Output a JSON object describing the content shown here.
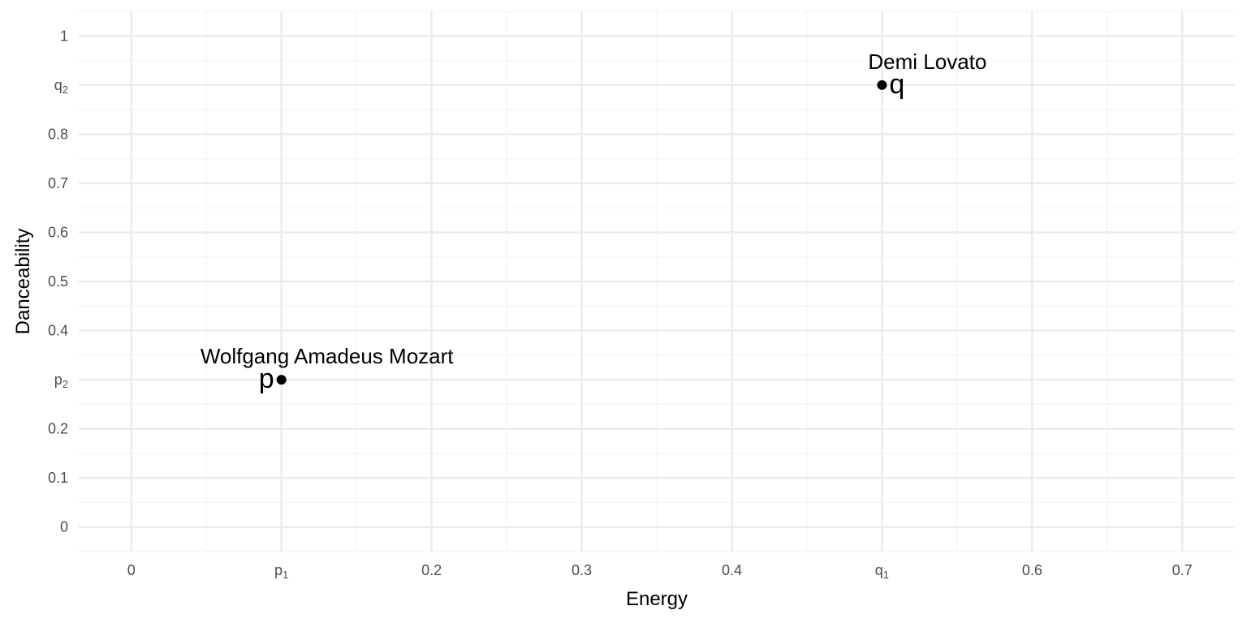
{
  "chart_data": {
    "type": "scatter",
    "title": "",
    "xlabel": "Energy",
    "ylabel": "Danceability",
    "xlim": [
      -0.035,
      0.735
    ],
    "ylim": [
      -0.05,
      1.05
    ],
    "x_ticks": [
      {
        "value": 0,
        "label": "0"
      },
      {
        "value": 0.1,
        "label": "p",
        "sub": "1"
      },
      {
        "value": 0.2,
        "label": "0.2"
      },
      {
        "value": 0.3,
        "label": "0.3"
      },
      {
        "value": 0.4,
        "label": "0.4"
      },
      {
        "value": 0.5,
        "label": "q",
        "sub": "1"
      },
      {
        "value": 0.6,
        "label": "0.6"
      },
      {
        "value": 0.7,
        "label": "0.7"
      }
    ],
    "y_ticks": [
      {
        "value": 0,
        "label": "0"
      },
      {
        "value": 0.1,
        "label": "0.1"
      },
      {
        "value": 0.2,
        "label": "0.2"
      },
      {
        "value": 0.3,
        "label": "p",
        "sub": "2"
      },
      {
        "value": 0.4,
        "label": "0.4"
      },
      {
        "value": 0.5,
        "label": "0.5"
      },
      {
        "value": 0.6,
        "label": "0.6"
      },
      {
        "value": 0.7,
        "label": "0.7"
      },
      {
        "value": 0.8,
        "label": "0.8"
      },
      {
        "value": 0.9,
        "label": "q",
        "sub": "2"
      },
      {
        "value": 1,
        "label": "1"
      }
    ],
    "grid": true,
    "points": [
      {
        "x": 0.1,
        "y": 0.3,
        "label": "Wolfgang Amadeus Mozart",
        "letter": "p",
        "letter_side": "left"
      },
      {
        "x": 0.5,
        "y": 0.9,
        "label": "Demi Lovato",
        "letter": "q",
        "letter_side": "right"
      }
    ],
    "colors": {
      "point": "#000000",
      "grid_major": "#ebebeb",
      "grid_minor": "#f4f4f4"
    }
  }
}
